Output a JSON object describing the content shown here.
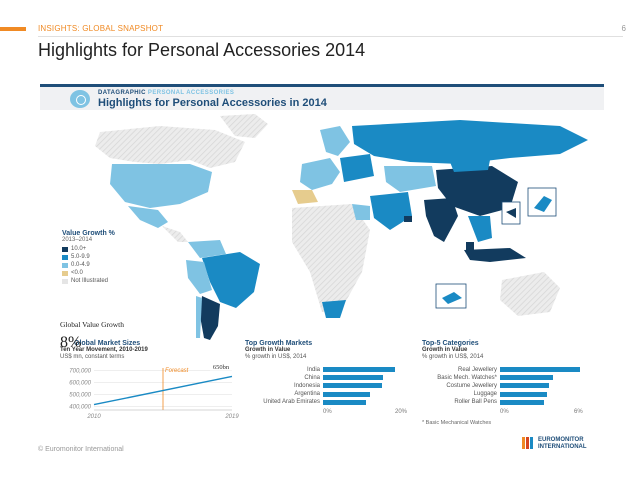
{
  "header": {
    "section_label": "INSIGHTS: GLOBAL SNAPSHOT",
    "page_number": "6",
    "title": "Highlights for Personal Accessories 2014"
  },
  "colors": {
    "accent": "#f08a24",
    "brand_dark": "#1f4e79",
    "bar": "#1a8ac4"
  },
  "infographic": {
    "kicker_a": "DATAGRAPHIC",
    "kicker_b": "PERSONAL ACCESSORIES",
    "title": "Highlights for Personal Accessories in 2014",
    "legend": {
      "title": "Value Growth %",
      "subtitle": "2013–2014",
      "items": [
        {
          "label": "10.0+",
          "color": "#123b5e"
        },
        {
          "label": "5.0-9.9",
          "color": "#1a8ac4"
        },
        {
          "label": "0.0-4.9",
          "color": "#7fc3e3"
        },
        {
          "label": "<0.0",
          "color": "#e6cc8e"
        },
        {
          "label": "Not Illustrated",
          "color": "#e5e5e5"
        }
      ]
    },
    "overlay": {
      "label": "Global Value Growth",
      "value": "8%"
    },
    "market_sizes": {
      "title": "Global Market Sizes",
      "subtitle": "Ten Year Movement, 2010-2019",
      "unit": "US$ mn, constant terms",
      "forecast_label": "Forecast",
      "end_label": "650bn",
      "y_ticks": [
        "700,000",
        "600,000",
        "500,000",
        "400,000"
      ],
      "x_ticks": [
        "2010",
        "2019"
      ]
    },
    "top_growth": {
      "title": "Top Growth Markets",
      "subtitle": "Growth in Value",
      "subtitle2": "% growth in US$, 2014",
      "x_ticks": [
        "0%",
        "20%"
      ]
    },
    "top_categories": {
      "title": "Top-5 Categories",
      "subtitle": "Growth in Value",
      "subtitle2": "% growth in US$, 2014",
      "x_ticks": [
        "0%",
        "6%"
      ],
      "footnote": "* Basic Mechanical Watches"
    }
  },
  "chart_data": [
    {
      "type": "line",
      "title": "Global Market Sizes",
      "xlabel": "",
      "ylabel": "US$ mn, constant terms",
      "x": [
        2010,
        2019
      ],
      "values": [
        415000,
        650000
      ],
      "xlim": [
        2010,
        2019
      ],
      "ylim": [
        370000,
        720000
      ]
    },
    {
      "type": "bar",
      "title": "Top Growth Markets",
      "categories": [
        "India",
        "China",
        "Indonesia",
        "Argentina",
        "United Arab Emirates"
      ],
      "values": [
        18.5,
        15.5,
        15.0,
        12.0,
        11.0
      ],
      "xlim": [
        0,
        20
      ]
    },
    {
      "type": "bar",
      "title": "Top-5 Categories",
      "categories": [
        "Real Jewellery",
        "Basic Mech. Watches*",
        "Costume Jewellery",
        "Luggage",
        "Roller Ball Pens"
      ],
      "values": [
        6.0,
        4.0,
        3.7,
        3.5,
        3.3
      ],
      "xlim": [
        0,
        6
      ]
    }
  ],
  "footer": {
    "copyright": "© Euromonitor International",
    "logo_line1": "EUROMONITOR",
    "logo_line2": "INTERNATIONAL"
  }
}
